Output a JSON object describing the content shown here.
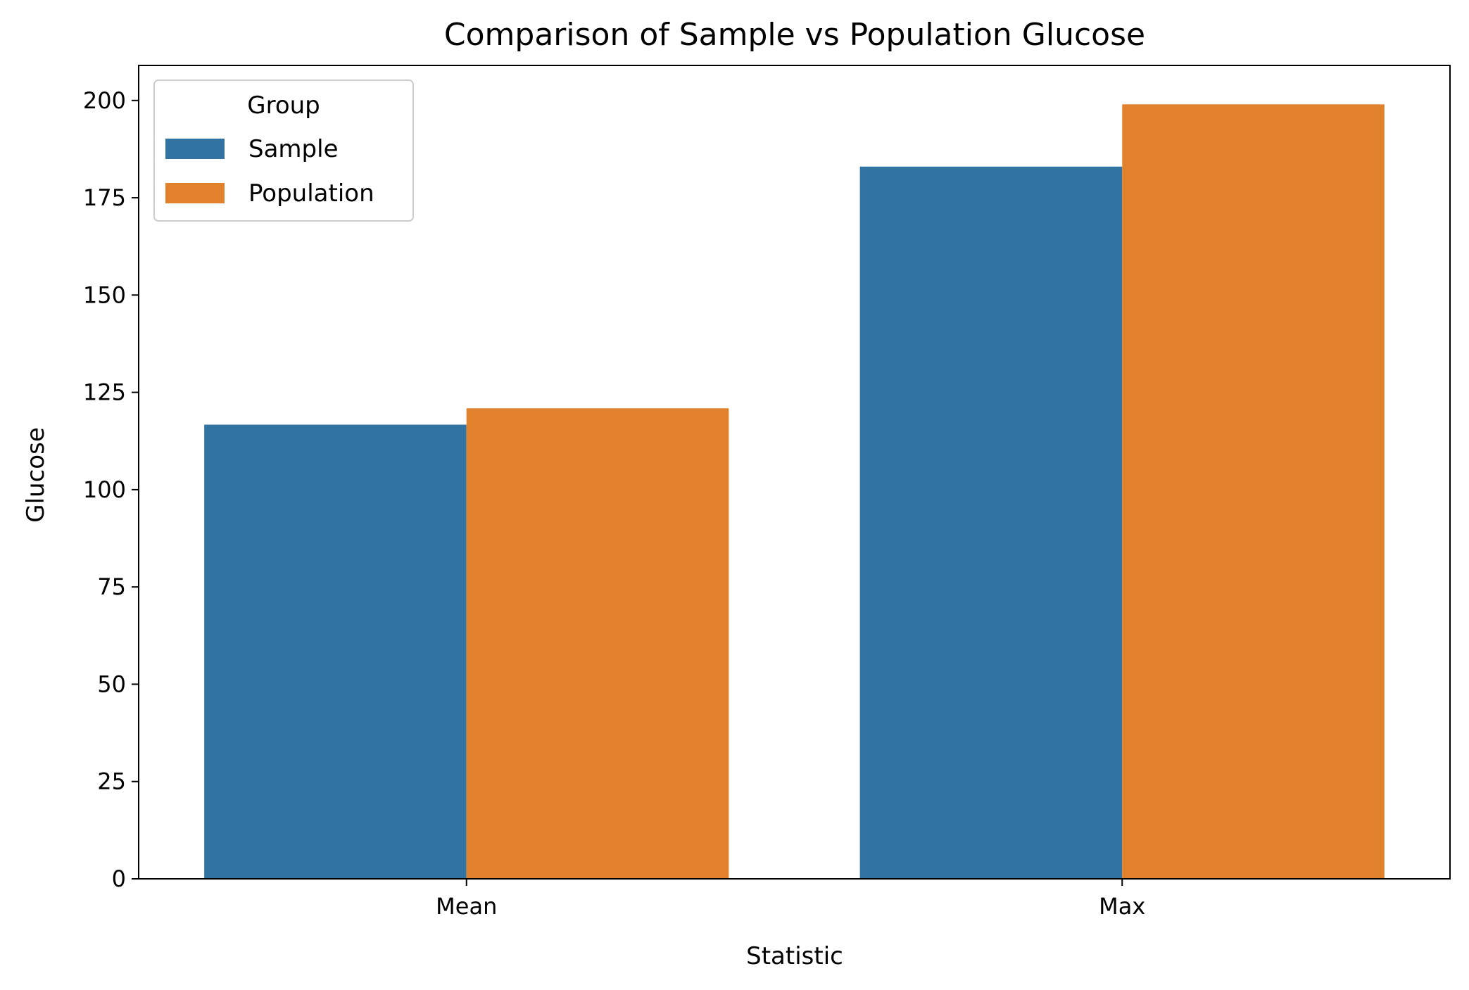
{
  "chart_data": {
    "type": "bar",
    "title": "Comparison of Sample vs Population Glucose",
    "xlabel": "Statistic",
    "ylabel": "Glucose",
    "categories": [
      "Mean",
      "Max"
    ],
    "series": [
      {
        "name": "Sample",
        "color": "#3274a1",
        "values": [
          116.7,
          183
        ]
      },
      {
        "name": "Population",
        "color": "#e1812c",
        "values": [
          120.9,
          199
        ]
      }
    ],
    "ylim": [
      0,
      209
    ],
    "yticks": [
      0,
      25,
      50,
      75,
      100,
      125,
      150,
      175,
      200
    ],
    "grid": false,
    "legend": {
      "title": "Group",
      "position": "top-left"
    }
  }
}
